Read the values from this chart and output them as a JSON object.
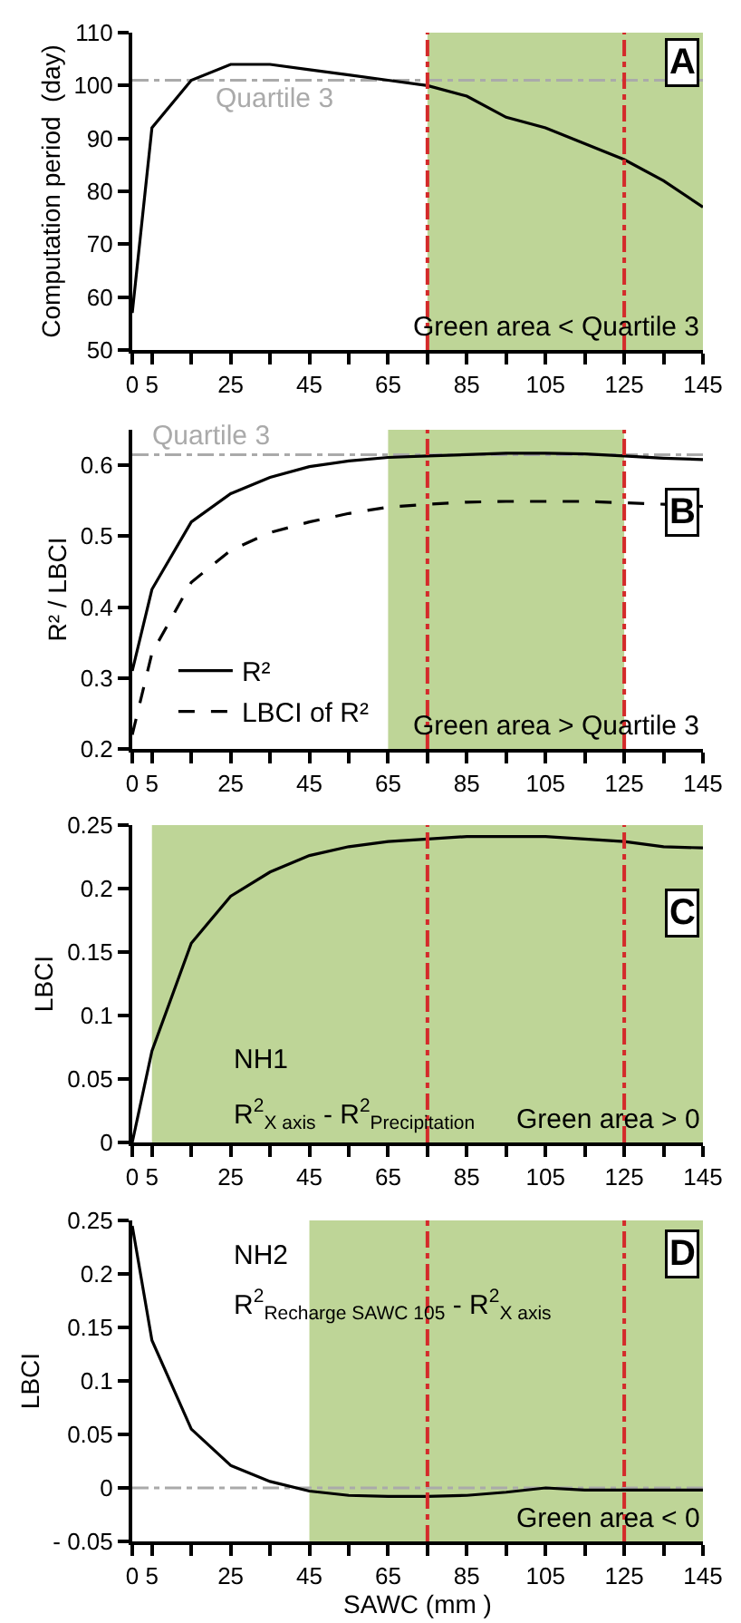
{
  "chart_data": [
    {
      "type": "line",
      "title": "A",
      "ylabel": "Computation period  (day)",
      "x": [
        0,
        5,
        15,
        25,
        35,
        45,
        55,
        65,
        75,
        85,
        95,
        105,
        115,
        125,
        135,
        145
      ],
      "series": [
        {
          "color": "#000000",
          "values": [
            57,
            92,
            101,
            104,
            104,
            103,
            102,
            101,
            100,
            98,
            94,
            92,
            89,
            86,
            82,
            77
          ]
        }
      ],
      "xlim": [
        0,
        145
      ],
      "xticks": [
        0,
        5,
        {
          "value": 15,
          "label": null
        },
        25,
        {
          "value": 35,
          "label": null
        },
        45,
        {
          "value": 55,
          "label": null
        },
        65,
        {
          "value": 75,
          "label": null
        },
        85,
        {
          "value": 95,
          "label": null
        },
        105,
        {
          "value": 115,
          "label": null
        },
        125,
        {
          "value": 135,
          "label": null
        },
        145
      ],
      "ylim": [
        50,
        110
      ],
      "yticks": [
        50,
        60,
        70,
        80,
        90,
        100,
        110
      ],
      "ref_lines": [
        {
          "axis": "y",
          "value": 101,
          "label": "Quartile 3",
          "color": "#aaaaaa",
          "line_style": "dashdot"
        },
        {
          "axis": "x",
          "value": 75,
          "color": "#d42a2a",
          "line_style": "dashdot"
        },
        {
          "axis": "x",
          "value": 125,
          "color": "#d42a2a",
          "line_style": "dashdot"
        }
      ],
      "bands": [
        {
          "axis": "x",
          "from": 75,
          "to": 145,
          "color": "#bed597"
        }
      ],
      "annotations": [
        "Green area < Quartile 3"
      ],
      "grid": false,
      "legend": false,
      "line_style": "solid",
      "marker": "none"
    },
    {
      "type": "line",
      "title": "B",
      "ylabel": "R² / LBCI",
      "x": [
        0,
        5,
        15,
        25,
        35,
        45,
        55,
        65,
        75,
        85,
        95,
        105,
        115,
        125,
        135,
        145
      ],
      "series": [
        {
          "name": "R²",
          "color": "#000000",
          "line_style": "solid",
          "values": [
            0.31,
            0.425,
            0.52,
            0.56,
            0.583,
            0.598,
            0.606,
            0.611,
            0.613,
            0.615,
            0.617,
            0.617,
            0.616,
            0.613,
            0.61,
            0.608
          ]
        },
        {
          "name": "LBCI of R²",
          "color": "#000000",
          "line_style": "dashed",
          "values": [
            0.22,
            0.335,
            0.435,
            0.48,
            0.505,
            0.52,
            0.532,
            0.541,
            0.545,
            0.548,
            0.549,
            0.549,
            0.549,
            0.547,
            0.545,
            0.542
          ]
        }
      ],
      "xlim": [
        0,
        145
      ],
      "xticks": [
        0,
        5,
        {
          "value": 15,
          "label": null
        },
        25,
        {
          "value": 35,
          "label": null
        },
        45,
        {
          "value": 55,
          "label": null
        },
        65,
        {
          "value": 75,
          "label": null
        },
        85,
        {
          "value": 95,
          "label": null
        },
        105,
        {
          "value": 115,
          "label": null
        },
        125,
        {
          "value": 135,
          "label": null
        },
        145
      ],
      "ylim": [
        0.2,
        0.65
      ],
      "yticks": [
        0.2,
        0.3,
        0.4,
        0.5,
        0.6
      ],
      "ref_lines": [
        {
          "axis": "y",
          "value": 0.615,
          "label": "Quartile 3",
          "color": "#aaaaaa",
          "line_style": "dashdot"
        },
        {
          "axis": "x",
          "value": 75,
          "color": "#d42a2a",
          "line_style": "dashdot"
        },
        {
          "axis": "x",
          "value": 125,
          "color": "#d42a2a",
          "line_style": "dashdot"
        }
      ],
      "bands": [
        {
          "axis": "x",
          "from": 65,
          "to": 125,
          "color": "#bed597"
        }
      ],
      "annotations": [
        "Green area > Quartile 3"
      ],
      "grid": false,
      "legend": "bottom left",
      "marker": "none"
    },
    {
      "type": "line",
      "title": "C",
      "ylabel": "LBCI",
      "x": [
        0,
        5,
        15,
        25,
        35,
        45,
        55,
        65,
        75,
        85,
        95,
        105,
        115,
        125,
        135,
        145
      ],
      "series": [
        {
          "color": "#000000",
          "values": [
            0,
            0.072,
            0.157,
            0.194,
            0.213,
            0.226,
            0.233,
            0.237,
            0.239,
            0.241,
            0.241,
            0.241,
            0.239,
            0.237,
            0.233,
            0.232
          ]
        }
      ],
      "xlim": [
        0,
        145
      ],
      "xticks": [
        0,
        5,
        {
          "value": 15,
          "label": null
        },
        25,
        {
          "value": 35,
          "label": null
        },
        45,
        {
          "value": 55,
          "label": null
        },
        65,
        {
          "value": 75,
          "label": null
        },
        85,
        {
          "value": 95,
          "label": null
        },
        105,
        {
          "value": 115,
          "label": null
        },
        125,
        {
          "value": 135,
          "label": null
        },
        145
      ],
      "ylim": [
        0,
        0.25
      ],
      "yticks": [
        0,
        0.05,
        0.1,
        0.15,
        0.2,
        0.25
      ],
      "ref_lines": [
        {
          "axis": "x",
          "value": 75,
          "color": "#d42a2a",
          "line_style": "dashdot"
        },
        {
          "axis": "x",
          "value": 125,
          "color": "#d42a2a",
          "line_style": "dashdot"
        }
      ],
      "bands": [
        {
          "axis": "x",
          "from": 5,
          "to": 145,
          "color": "#bed597"
        }
      ],
      "annotations": [
        "NH1",
        "R$^{2}$$_{X axis}$ - R$^{2}$$_{Precipitation}$",
        "Green area > 0"
      ],
      "grid": false,
      "legend": false,
      "line_style": "solid",
      "marker": "none"
    },
    {
      "type": "line",
      "title": "D",
      "ylabel": "LBCI",
      "xlabel": "SAWC (mm )",
      "x": [
        0,
        5,
        15,
        25,
        35,
        45,
        55,
        65,
        75,
        85,
        95,
        105,
        115,
        125,
        135,
        145
      ],
      "series": [
        {
          "color": "#000000",
          "values": [
            0.245,
            0.138,
            0.055,
            0.021,
            0.006,
            -0.003,
            -0.007,
            -0.008,
            -0.008,
            -0.007,
            -0.004,
            0,
            -0.002,
            -0.002,
            -0.002,
            -0.002
          ]
        }
      ],
      "xlim": [
        0,
        145
      ],
      "xticks": [
        0,
        5,
        {
          "value": 15,
          "label": null
        },
        25,
        {
          "value": 35,
          "label": null
        },
        45,
        {
          "value": 55,
          "label": null
        },
        65,
        {
          "value": 75,
          "label": null
        },
        85,
        {
          "value": 95,
          "label": null
        },
        105,
        {
          "value": 115,
          "label": null
        },
        125,
        {
          "value": 135,
          "label": null
        },
        145
      ],
      "ylim": [
        -0.05,
        0.25
      ],
      "yticks": [
        {
          "value": -0.05,
          "label": "- 0.05"
        },
        0,
        0.05,
        0.1,
        0.15,
        0.2,
        0.25
      ],
      "ref_lines": [
        {
          "axis": "y",
          "value": 0,
          "color": "#aaaaaa",
          "line_style": "dashdot"
        },
        {
          "axis": "x",
          "value": 75,
          "color": "#d42a2a",
          "line_style": "dashdot"
        },
        {
          "axis": "x",
          "value": 125,
          "color": "#d42a2a",
          "line_style": "dashdot"
        }
      ],
      "bands": [
        {
          "axis": "x",
          "from": 45,
          "to": 145,
          "color": "#bed597"
        }
      ],
      "annotations": [
        "NH2",
        "R$^{2}$$_{Recharge SAWC 105}$ - R$^{2}$$_{X axis}$",
        "Green area < 0"
      ],
      "grid": false,
      "legend": false,
      "line_style": "solid",
      "marker": "none"
    }
  ]
}
